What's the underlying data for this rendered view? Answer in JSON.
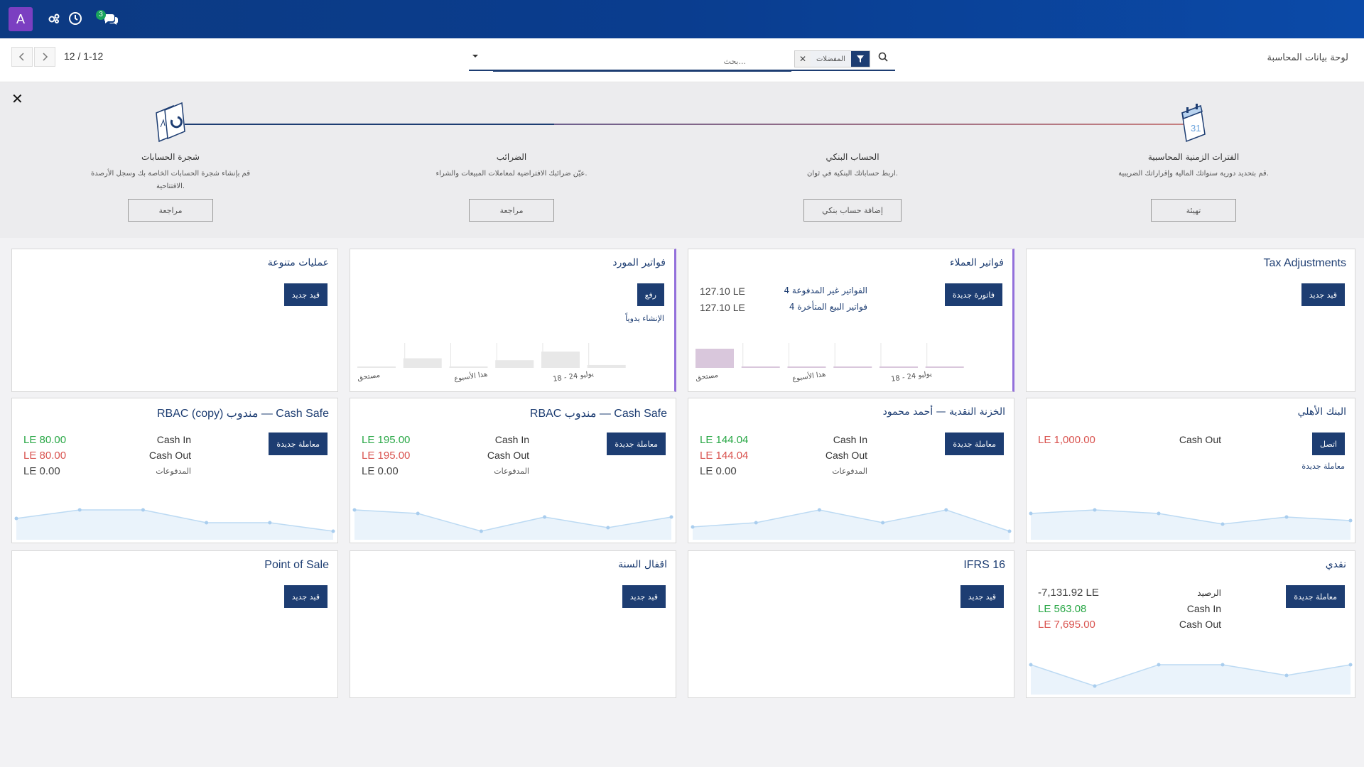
{
  "topbar": {
    "avatar_letter": "A",
    "icons": [
      "debug-icon",
      "clock-icon",
      "chat-icon"
    ],
    "messages_count": "3",
    "colors": {
      "bar": "#0c3a82",
      "avatar": "#7b3fc1",
      "badge": "#1aa35d"
    }
  },
  "control": {
    "breadcrumb": "لوحة بيانات المحاسبة",
    "pager_value": "1-12",
    "pager_limit": "12",
    "search_placeholder": "بحث...",
    "facet_label": "المفضلات"
  },
  "onboarding": {
    "steps": [
      {
        "title": "الفترات الزمنية المحاسبية",
        "desc": "قم بتحديد دورية سنواتك المالية وإقراراتك الضريبية.",
        "button": "تهيئة"
      },
      {
        "title": "الحساب البنكي",
        "desc": "اربط حساباتك البنكية في ثوان.",
        "button": "إضافة حساب بنكي"
      },
      {
        "title": "الضرائب",
        "desc": "عيّن ضرائبك الافتراضية لمعاملات المبيعات والشراء.",
        "button": "مراجعة"
      },
      {
        "title": "شجرة الحسابات",
        "desc": "قم بإنشاء شجرة الحسابات الخاصة بك وسجل الأرصدة الافتتاحية.",
        "button": "مراجعة"
      }
    ]
  },
  "cards": {
    "tax_adjustments": {
      "title": "Tax Adjustments",
      "button": "قيد جديد"
    },
    "customer_invoices": {
      "title": "فواتير العملاء",
      "button": "فاتورة جديدة",
      "rows": [
        {
          "label": "4 الفواتير غير المدفوعة",
          "amount": "127.10 LE"
        },
        {
          "label": "4 فواتير البيع المتأخرة",
          "amount": "127.10 LE"
        }
      ],
      "chart_data": {
        "type": "bar",
        "categories": [
          "مستحق",
          "هذا الأسبوع",
          "18 - 24 يوليو",
          "",
          "",
          ""
        ],
        "values": [
          1,
          0,
          0,
          0,
          0,
          0
        ]
      },
      "axis": [
        "مستحق",
        "هذا الأسبوع",
        "18 - 24 يوليو"
      ]
    },
    "vendor_bills": {
      "title": "فواتير المورد",
      "button": "رفع",
      "link": "الإنشاء يدوياً",
      "chart_data": {
        "type": "bar",
        "categories": [
          "مستحق",
          "هذا الأسبوع",
          "18 - 24 يوليو",
          "",
          "",
          ""
        ],
        "values": [
          0.05,
          0.5,
          0.05,
          0.4,
          0.85,
          0.15
        ]
      },
      "axis": [
        "مستحق",
        "هذا الأسبوع",
        "18 - 24 يوليو"
      ]
    },
    "misc_operations": {
      "title": "عمليات متنوعة",
      "button": "قيد جديد"
    },
    "national_bank": {
      "title": "البنك الأهلي",
      "button": "اتصل",
      "link": "معاملة جديدة",
      "cash_out_label": "Cash Out",
      "cash_out_value": "LE 1,000.00",
      "chart_data": {
        "type": "area",
        "values": [
          5,
          6,
          5,
          2,
          4,
          3
        ]
      }
    },
    "cash_treasury": {
      "title": "الخزنة النقدية — أحمد محمود",
      "button": "معاملة جديدة",
      "cash_in_label": "Cash In",
      "cash_in_value": "LE 144.04",
      "cash_out_label": "Cash Out",
      "cash_out_value": "LE 144.04",
      "payments_label": "المدفوعات",
      "payments_value": "LE 0.00",
      "chart_data": {
        "type": "area",
        "values": [
          1,
          2,
          5,
          2,
          5,
          0
        ]
      }
    },
    "rbac_safe": {
      "title": "RBAC مندوب — Cash Safe",
      "button": "معاملة جديدة",
      "cash_in_label": "Cash In",
      "cash_in_value": "LE 195.00",
      "cash_out_label": "Cash Out",
      "cash_out_value": "LE 195.00",
      "payments_label": "المدفوعات",
      "payments_value": "LE 0.00",
      "chart_data": {
        "type": "area",
        "values": [
          6,
          5,
          0,
          4,
          1,
          4
        ]
      }
    },
    "rbac_copy_safe": {
      "title": "RBAC (copy) مندوب — Cash Safe",
      "button": "معاملة جديدة",
      "cash_in_label": "Cash In",
      "cash_in_value": "LE 80.00",
      "cash_out_label": "Cash Out",
      "cash_out_value": "LE 80.00",
      "payments_label": "المدفوعات",
      "payments_value": "LE 0.00",
      "chart_data": {
        "type": "area",
        "values": [
          3,
          5,
          5,
          2,
          2,
          0
        ]
      }
    },
    "cash": {
      "title": "نقدي",
      "button": "معاملة جديدة",
      "balance_label": "الرصيد",
      "balance_value": "-7,131.92 LE",
      "cash_in_label": "Cash In",
      "cash_in_value": "LE 563.08",
      "cash_out_label": "Cash Out",
      "cash_out_value": "LE 7,695.00",
      "chart_data": {
        "type": "area",
        "values": [
          6,
          0,
          6,
          6,
          3,
          6
        ]
      }
    },
    "ifrs16": {
      "title": "IFRS 16",
      "button": "قيد جديد"
    },
    "year_closing": {
      "title": "اقفال السنة",
      "button": "قيد جديد"
    },
    "point_of_sale": {
      "title": "Point of Sale",
      "button": "قيد جديد"
    }
  }
}
